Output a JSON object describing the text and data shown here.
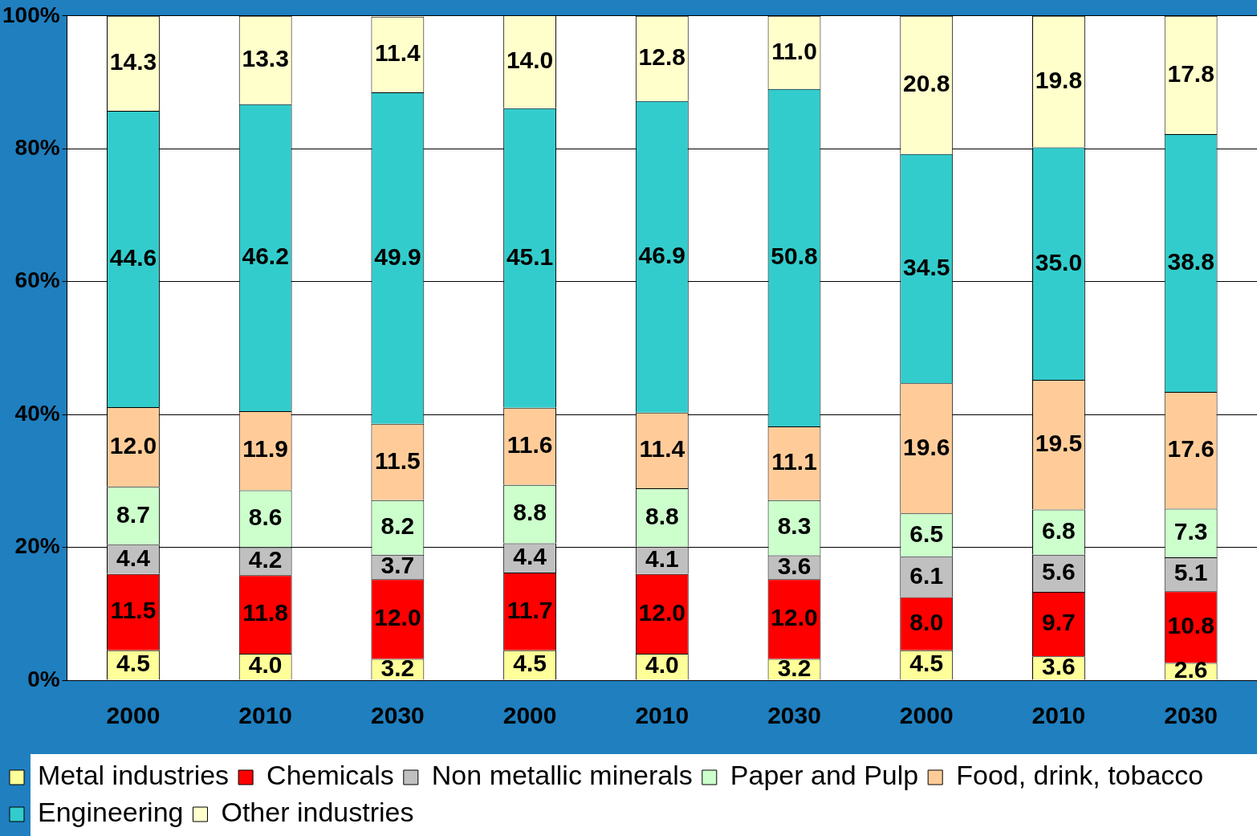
{
  "chart_data": {
    "type": "bar",
    "stacked": true,
    "categories": [
      "2000",
      "2010",
      "2030",
      "2000",
      "2010",
      "2030",
      "2000",
      "2010",
      "2030"
    ],
    "ylim": [
      0,
      100
    ],
    "yticks": [
      {
        "value": 0,
        "label": "0%"
      },
      {
        "value": 20,
        "label": "20%"
      },
      {
        "value": 40,
        "label": "40%"
      },
      {
        "value": 60,
        "label": "60%"
      },
      {
        "value": 80,
        "label": "80%"
      },
      {
        "value": 100,
        "label": "100%"
      }
    ],
    "grid": "y",
    "legend": "bottom",
    "series": [
      {
        "name": "Metal industries",
        "color": "#ffff99",
        "values": [
          4.5,
          4.0,
          3.2,
          4.5,
          4.0,
          3.2,
          4.5,
          3.6,
          2.6
        ],
        "value_labels": [
          "4.5",
          "4.0",
          "3.2",
          "4.5",
          "4.0",
          "3.2",
          "4.5",
          "3.6",
          "2.6"
        ]
      },
      {
        "name": "Chemicals",
        "color": "#ff0000",
        "values": [
          11.5,
          11.8,
          12.0,
          11.7,
          12.0,
          12.0,
          8.0,
          9.7,
          10.8
        ],
        "value_labels": [
          "11.5",
          "11.8",
          "12.0",
          "11.7",
          "12.0",
          "12.0",
          "8.0",
          "9.7",
          "10.8"
        ]
      },
      {
        "name": "Non metallic minerals",
        "color": "#c0c0c0",
        "values": [
          4.4,
          4.2,
          3.7,
          4.4,
          4.1,
          3.6,
          6.1,
          5.6,
          5.1
        ],
        "value_labels": [
          "4.4",
          "4.2",
          "3.7",
          "4.4",
          "4.1",
          "3.6",
          "6.1",
          "5.6",
          "5.1"
        ]
      },
      {
        "name": "Paper and Pulp",
        "color": "#ccffcc",
        "values": [
          8.7,
          8.6,
          8.2,
          8.8,
          8.8,
          8.3,
          6.5,
          6.8,
          7.3
        ],
        "value_labels": [
          "8.7",
          "8.6",
          "8.2",
          "8.8",
          "8.8",
          "8.3",
          "6.5",
          "6.8",
          "7.3"
        ]
      },
      {
        "name": "Food, drink, tobacco",
        "color": "#ffcc99",
        "values": [
          12.0,
          11.9,
          11.5,
          11.6,
          11.4,
          11.1,
          19.6,
          19.5,
          17.6
        ],
        "value_labels": [
          "12.0",
          "11.9",
          "11.5",
          "11.6",
          "11.4",
          "11.1",
          "19.6",
          "19.5",
          "17.6"
        ]
      },
      {
        "name": "Engineering",
        "color": "#33cccc",
        "values": [
          44.6,
          46.2,
          49.9,
          45.1,
          46.9,
          50.8,
          34.5,
          35.0,
          38.8
        ],
        "value_labels": [
          "44.6",
          "46.2",
          "49.9",
          "45.1",
          "46.9",
          "50.8",
          "34.5",
          "35.0",
          "38.8"
        ]
      },
      {
        "name": "Other industries",
        "color": "#ffffcc",
        "values": [
          14.3,
          13.3,
          11.4,
          14.0,
          12.8,
          11.0,
          20.8,
          19.8,
          17.8
        ],
        "value_labels": [
          "14.3",
          "13.3",
          "11.4",
          "14.0",
          "12.8",
          "11.0",
          "20.8",
          "19.8",
          "17.8"
        ]
      }
    ]
  }
}
